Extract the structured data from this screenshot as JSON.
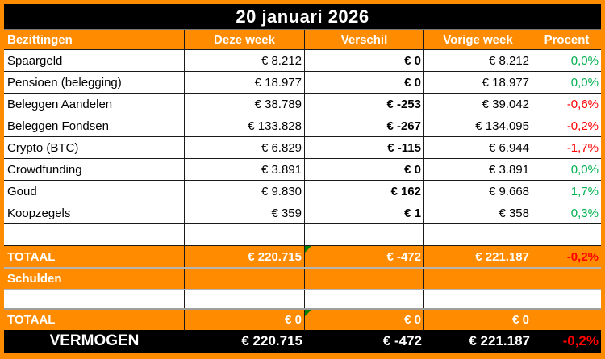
{
  "title": "20 januari 2026",
  "colors": {
    "accent_orange": "#FF8C00",
    "up": "#00B050",
    "down": "#FF0000",
    "marker_green": "#008000",
    "net_row_black": "#000000"
  },
  "table": {
    "headers": [
      "Bezittingen",
      "Deze week",
      "Verschil",
      "Vorige week",
      "Procent"
    ],
    "rows": [
      {
        "label": "Spaargeld",
        "this_week": "€ 8.212",
        "diff": "€ 0",
        "last_week": "€ 8.212",
        "percent": "0,0%",
        "trend": "up"
      },
      {
        "label": "Pensioen (belegging)",
        "this_week": "€ 18.977",
        "diff": "€ 0",
        "last_week": "€ 18.977",
        "percent": "0,0%",
        "trend": "up"
      },
      {
        "label": "Beleggen Aandelen",
        "this_week": "€ 38.789",
        "diff": "€ -253",
        "last_week": "€ 39.042",
        "percent": "-0,6%",
        "trend": "down"
      },
      {
        "label": "Beleggen Fondsen",
        "this_week": "€ 133.828",
        "diff": "€ -267",
        "last_week": "€ 134.095",
        "percent": "-0,2%",
        "trend": "down"
      },
      {
        "label": "Crypto (BTC)",
        "this_week": "€ 6.829",
        "diff": "€ -115",
        "last_week": "€ 6.944",
        "percent": "-1,7%",
        "trend": "down"
      },
      {
        "label": "Crowdfunding",
        "this_week": "€ 3.891",
        "diff": "€ 0",
        "last_week": "€ 3.891",
        "percent": "0,0%",
        "trend": "up"
      },
      {
        "label": "Goud",
        "this_week": "€ 9.830",
        "diff": "€ 162",
        "last_week": "€ 9.668",
        "percent": "1,7%",
        "trend": "up"
      },
      {
        "label": "Koopzegels",
        "this_week": "€ 359",
        "diff": "€ 1",
        "last_week": "€ 358",
        "percent": "0,3%",
        "trend": "up"
      }
    ],
    "assets_total": {
      "label": "TOTAAL",
      "this_week": "€ 220.715",
      "diff": "€ -472",
      "last_week": "€ 221.187",
      "percent": "-0,2%",
      "trend": "down"
    },
    "debts_section_label": "Schulden",
    "debts_total": {
      "label": "TOTAAL",
      "this_week": "€ 0",
      "diff": "€ 0",
      "last_week": "€ 0",
      "percent": ""
    },
    "net_worth": {
      "label": "VERMOGEN",
      "this_week": "€ 220.715",
      "diff": "€ -472",
      "last_week": "€ 221.187",
      "percent": "-0,2%",
      "trend": "down"
    }
  }
}
